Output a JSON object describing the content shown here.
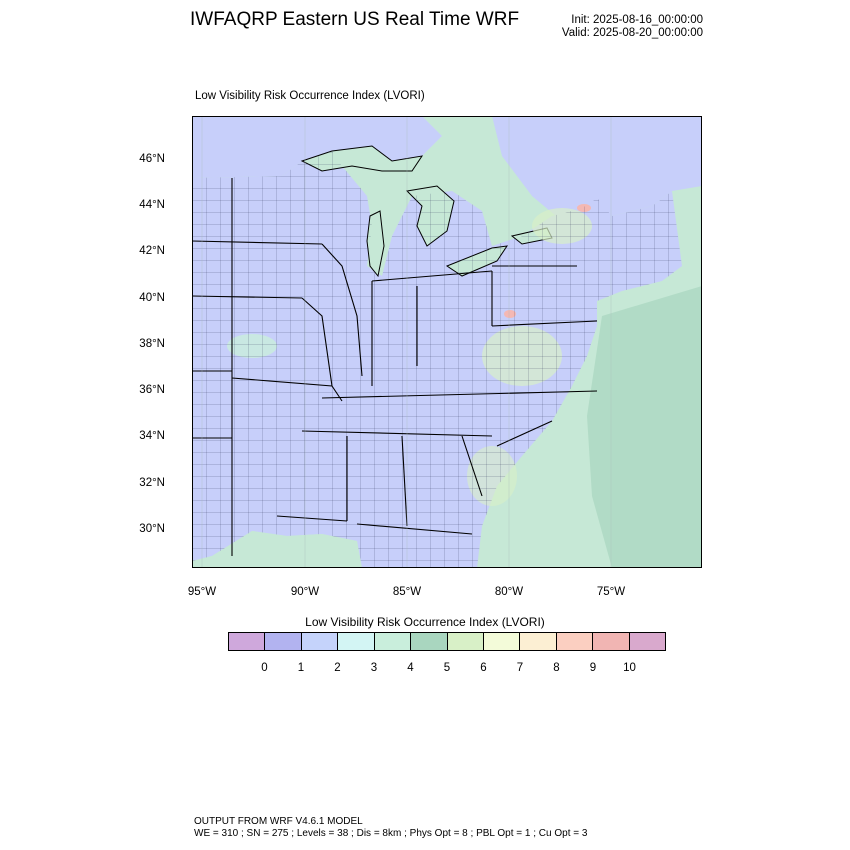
{
  "header": {
    "title": "IWFAQRP Eastern US Real Time WRF",
    "init": "Init: 2025-08-16_00:00:00",
    "valid": "Valid: 2025-08-20_00:00:00"
  },
  "map": {
    "subtitle": "Low Visibility Risk Occurrence Index   (LVORI)",
    "lat_labels": [
      "46°N",
      "44°N",
      "42°N",
      "40°N",
      "38°N",
      "36°N",
      "34°N",
      "32°N",
      "30°N"
    ],
    "lon_labels": [
      "95°W",
      "90°W",
      "85°W",
      "80°W",
      "75°W"
    ],
    "colors": {
      "land_dominant": "#c7cffa",
      "water": "#c6e8d6",
      "ocean_shade": "#a8d6bf",
      "highlight": "#f4b8b3"
    }
  },
  "colorbar": {
    "title": "Low Visibility Risk Occurrence Index  (LVORI)",
    "labels": [
      "0",
      "1",
      "2",
      "3",
      "4",
      "5",
      "6",
      "7",
      "8",
      "9",
      "10"
    ],
    "colors": [
      "#cfa8dc",
      "#b2b3f0",
      "#c5d3fb",
      "#d3f5f4",
      "#c9eedc",
      "#a9d6bf",
      "#d8f0c7",
      "#f3fbd9",
      "#fcefd3",
      "#fbcfc1",
      "#f1b5b3",
      "#d9a9cd"
    ]
  },
  "footer": {
    "line1": "OUTPUT FROM WRF V4.6.1 MODEL",
    "line2": "WE = 310 ; SN = 275 ; Levels = 38 ; Dis = 8km ; Phys Opt = 8 ; PBL Opt = 1 ; Cu Opt = 3"
  }
}
